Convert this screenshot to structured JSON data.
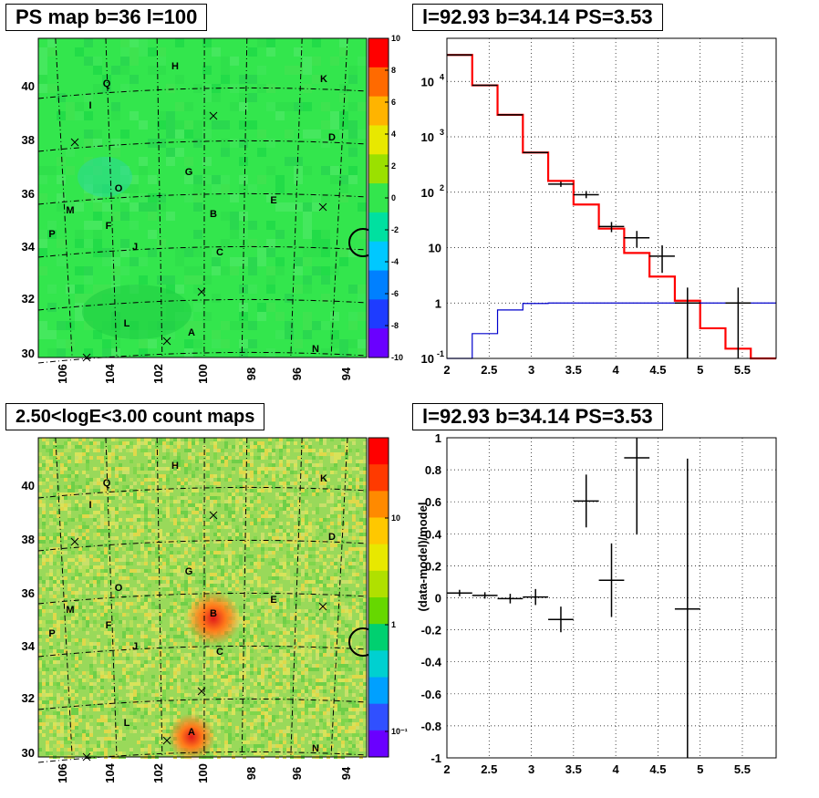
{
  "panels": {
    "tl_title": "PS map b=36 l=100",
    "tr_title": "l=92.93 b=34.14 PS=3.53",
    "bl_title": "2.50<logE<3.00 count maps",
    "br_title": "l=92.93 b=34.14 PS=3.53",
    "br_ylabel": "(data-model)/model"
  },
  "sky_map": {
    "x_ticks": [
      "106",
      "104",
      "102",
      "100",
      "98",
      "96",
      "94"
    ],
    "y_ticks": [
      "40",
      "38",
      "36",
      "34",
      "32",
      "30"
    ],
    "labels": [
      "H",
      "K",
      "Q",
      "I",
      "D",
      "G",
      "O",
      "E",
      "M",
      "B",
      "F",
      "P",
      "J",
      "C",
      "L",
      "A",
      "N"
    ],
    "crosses": 6,
    "ps_palette": {
      "type": "rainbow",
      "min": -10,
      "max": 10
    },
    "ps_colorbar_ticks": [
      "10",
      "8",
      "6",
      "4",
      "2",
      "0",
      "-2",
      "-4",
      "-6",
      "-8",
      "-10"
    ],
    "count_colorbar_ticks": [
      "10",
      "1",
      "10⁻¹"
    ],
    "background_color_ps": "#33e64d",
    "background_color_counts": "#99d95a"
  },
  "chart_data": [
    {
      "type": "line",
      "subtype": "step-histogram",
      "title": "l=92.93 b=34.14 PS=3.53",
      "xlim": [
        2,
        5.9
      ],
      "ylim": [
        0.1,
        60000
      ],
      "y_scale": "log",
      "grid": true,
      "x_ticks": [
        "2",
        "2.5",
        "3",
        "3.5",
        "4",
        "4.5",
        "5",
        "5.5"
      ],
      "y_ticks": [
        "10⁻¹",
        "1",
        "10",
        "10²",
        "10³",
        "10⁴"
      ],
      "series": [
        {
          "color": "#ff0000",
          "edges": [
            2,
            2.3,
            2.6,
            2.9,
            3.2,
            3.5,
            3.8,
            4.1,
            4.4,
            4.7,
            5.0,
            5.3,
            5.6,
            5.9
          ],
          "values": [
            30000,
            8500,
            2500,
            520,
            160,
            60,
            22,
            8,
            3,
            1.1,
            0.35,
            0.15,
            0.1
          ]
        },
        {
          "color": "#0000cc",
          "edges": [
            2,
            2.3,
            2.6,
            2.9,
            3.2,
            3.5,
            3.8,
            4.1,
            4.4,
            4.7,
            5.0,
            5.3,
            5.6,
            5.9
          ],
          "values": [
            0.1,
            0.28,
            0.75,
            0.98,
            1,
            1,
            1,
            1,
            1,
            1,
            1,
            1,
            1
          ]
        },
        {
          "color": "#000000",
          "points": [
            {
              "x": 2.15,
              "y": 30000,
              "xerr": 0.15
            },
            {
              "x": 2.45,
              "y": 8500,
              "xerr": 0.15
            },
            {
              "x": 2.75,
              "y": 2500,
              "xerr": 0.15
            },
            {
              "x": 3.05,
              "y": 520,
              "xerr": 0.15
            },
            {
              "x": 3.35,
              "y": 140,
              "xerr": 0.15,
              "yerr": [
                125,
                155
              ]
            },
            {
              "x": 3.65,
              "y": 90,
              "xerr": 0.15,
              "yerr": [
                78,
                105
              ]
            },
            {
              "x": 3.95,
              "y": 24,
              "xerr": 0.15,
              "yerr": [
                19,
                29
              ]
            },
            {
              "x": 4.25,
              "y": 15,
              "xerr": 0.15,
              "yerr": [
                10,
                20
              ]
            },
            {
              "x": 4.55,
              "y": 7,
              "xerr": 0.15,
              "yerr": [
                3.5,
                11
              ]
            },
            {
              "x": 4.85,
              "y": 1.0,
              "xerr": 0.15,
              "yerr": [
                0.1,
                1.9
              ]
            },
            {
              "x": 5.45,
              "y": 1.0,
              "xerr": 0.15,
              "yerr": [
                0.1,
                1.9
              ]
            }
          ]
        }
      ]
    },
    {
      "type": "scatter",
      "title": "l=92.93 b=34.14 PS=3.53",
      "ylabel": "(data-model)/model",
      "xlim": [
        2,
        5.9
      ],
      "ylim": [
        -1,
        1
      ],
      "grid": true,
      "x_ticks": [
        "2",
        "2.5",
        "3",
        "3.5",
        "4",
        "4.5",
        "5",
        "5.5"
      ],
      "y_ticks": [
        "1",
        "0.8",
        "0.6",
        "0.4",
        "0.2",
        "0",
        "-0.2",
        "-0.4",
        "-0.6",
        "-0.8",
        "-1"
      ],
      "points": [
        {
          "x": 2.15,
          "y": 0.03,
          "xerr": 0.15,
          "yerr": 0.02
        },
        {
          "x": 2.45,
          "y": 0.015,
          "xerr": 0.15,
          "yerr": 0.02
        },
        {
          "x": 2.75,
          "y": -0.005,
          "xerr": 0.15,
          "yerr": 0.03
        },
        {
          "x": 3.05,
          "y": 0.005,
          "xerr": 0.15,
          "yerr": 0.05
        },
        {
          "x": 3.35,
          "y": -0.135,
          "xerr": 0.15,
          "yerr": 0.08
        },
        {
          "x": 3.65,
          "y": 0.605,
          "xerr": 0.15,
          "yerr": 0.165
        },
        {
          "x": 3.95,
          "y": 0.11,
          "xerr": 0.15,
          "yerr": 0.23
        },
        {
          "x": 4.25,
          "y": 0.875,
          "xerr": 0.15,
          "yerr": 0.48
        },
        {
          "x": 4.85,
          "y": -0.07,
          "xerr": 0.15,
          "yerr": 0.94
        }
      ]
    }
  ]
}
